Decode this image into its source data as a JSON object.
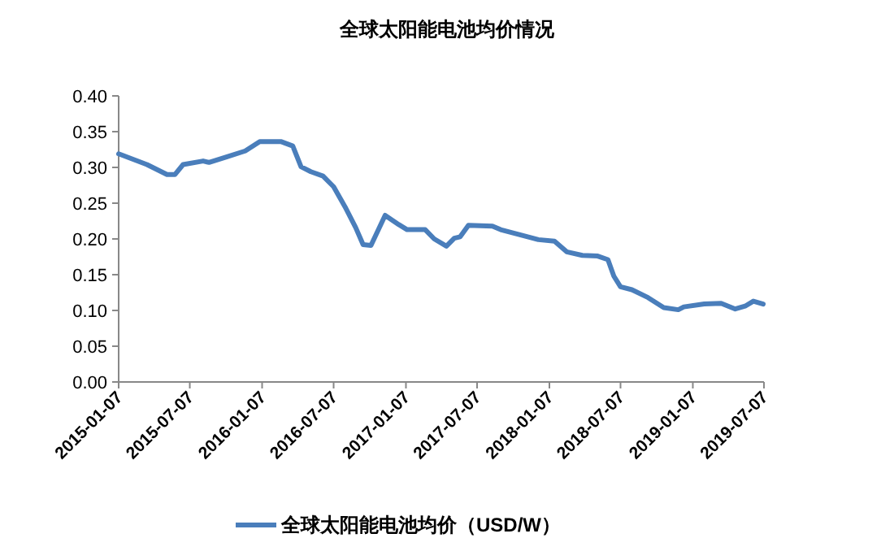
{
  "chart_data": {
    "type": "line",
    "title": "全球太阳能电池均价情况",
    "x": [
      "2015-01-07",
      "2015-03-20",
      "2015-05-10",
      "2015-05-30",
      "2015-06-20",
      "2015-08-10",
      "2015-08-25",
      "2015-10-10",
      "2015-11-25",
      "2016-01-01",
      "2016-02-25",
      "2016-03-25",
      "2016-04-15",
      "2016-05-10",
      "2016-06-10",
      "2016-07-07",
      "2016-08-05",
      "2016-09-01",
      "2016-09-20",
      "2016-10-10",
      "2016-11-15",
      "2016-12-20",
      "2017-01-10",
      "2017-02-25",
      "2017-03-20",
      "2017-04-20",
      "2017-05-10",
      "2017-05-25",
      "2017-06-15",
      "2017-08-15",
      "2017-09-05",
      "2017-10-30",
      "2017-12-10",
      "2018-01-20",
      "2018-02-20",
      "2018-04-01",
      "2018-05-10",
      "2018-06-05",
      "2018-06-20",
      "2018-07-07",
      "2018-08-05",
      "2018-09-15",
      "2018-10-25",
      "2018-12-01",
      "2018-12-15",
      "2019-02-05",
      "2019-03-20",
      "2019-04-25",
      "2019-05-20",
      "2019-06-10",
      "2019-07-05"
    ],
    "series": [
      {
        "name": "全球太阳能电池均价（USD/W）",
        "color": "#4a7ebb",
        "values": [
          0.319,
          0.304,
          0.29,
          0.29,
          0.304,
          0.309,
          0.307,
          0.315,
          0.323,
          0.336,
          0.336,
          0.33,
          0.301,
          0.294,
          0.288,
          0.273,
          0.245,
          0.216,
          0.192,
          0.191,
          0.233,
          0.22,
          0.213,
          0.213,
          0.2,
          0.19,
          0.201,
          0.203,
          0.219,
          0.218,
          0.213,
          0.205,
          0.199,
          0.197,
          0.182,
          0.177,
          0.176,
          0.171,
          0.148,
          0.133,
          0.129,
          0.118,
          0.104,
          0.101,
          0.105,
          0.109,
          0.11,
          0.102,
          0.106,
          0.113,
          0.109
        ]
      }
    ],
    "xlim": [
      "2015-01-07",
      "2019-07-07"
    ],
    "ylim": [
      0,
      0.4
    ],
    "xticks": [
      "2015-01-07",
      "2015-07-07",
      "2016-01-07",
      "2016-07-07",
      "2017-01-07",
      "2017-07-07",
      "2018-01-07",
      "2018-07-07",
      "2019-01-07",
      "2019-07-07"
    ],
    "yticks": [
      {
        "value": 0,
        "label": "0.00"
      },
      {
        "value": 0.05,
        "label": "0.05"
      },
      {
        "value": 0.1,
        "label": "0.10"
      },
      {
        "value": 0.15,
        "label": "0.15"
      },
      {
        "value": 0.2,
        "label": "0.20"
      },
      {
        "value": 0.25,
        "label": "0.25"
      },
      {
        "value": 0.3,
        "label": "0.30"
      },
      {
        "value": 0.35,
        "label": "0.35"
      },
      {
        "value": 0.4,
        "label": "0.40"
      }
    ],
    "legend": "bottom"
  }
}
